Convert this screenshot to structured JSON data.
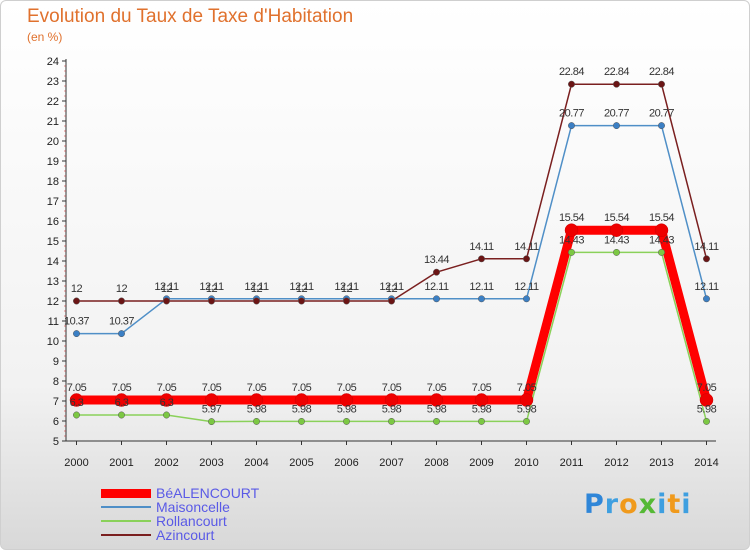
{
  "chart_data": {
    "type": "line",
    "title": "Evolution du Taux de Taxe d'Habitation",
    "subtitle": "(en %)",
    "x": [
      "2000",
      "2001",
      "2002",
      "2003",
      "2004",
      "2005",
      "2006",
      "2007",
      "2008",
      "2009",
      "2010",
      "2011",
      "2012",
      "2013",
      "2014"
    ],
    "ylim": [
      5,
      24
    ],
    "yticks": [
      5,
      6,
      7,
      8,
      9,
      10,
      11,
      12,
      13,
      14,
      15,
      16,
      17,
      18,
      19,
      20,
      21,
      22,
      23,
      24
    ],
    "grid": false,
    "legend_position": "bottom-left",
    "series": [
      {
        "name": "Maisoncelle",
        "color": "#4f8fc7",
        "point_color": "#3b7fc4",
        "values": [
          10.37,
          10.37,
          12.11,
          12.11,
          12.11,
          12.11,
          12.11,
          12.11,
          12.11,
          12.11,
          12.11,
          20.77,
          20.77,
          20.77,
          12.11
        ],
        "labels": [
          "10.37",
          "10.37",
          "12.11",
          "12.11",
          "12.11",
          "12.11",
          "12.11",
          "12.11",
          "12.11",
          "12.11",
          "12.11",
          "20.77",
          "20.77",
          "20.77",
          "12.11"
        ]
      },
      {
        "name": "Rollancourt",
        "color": "#8ad15a",
        "point_color": "#7cc843",
        "values": [
          6.3,
          6.3,
          6.3,
          5.97,
          5.98,
          5.98,
          5.98,
          5.98,
          5.98,
          5.98,
          5.98,
          14.43,
          14.43,
          14.43,
          5.98
        ],
        "labels": [
          "6.3",
          "6.3",
          "6.3",
          "5.97",
          "5.98",
          "5.98",
          "5.98",
          "5.98",
          "5.98",
          "5.98",
          "5.98",
          "14.43",
          "14.43",
          "14.43",
          "5.98"
        ]
      },
      {
        "name": "Azincourt",
        "color": "#7a1f1f",
        "point_color": "#6b1515",
        "values": [
          12,
          12,
          12,
          12,
          12,
          12,
          12,
          12,
          13.44,
          14.11,
          14.11,
          22.84,
          22.84,
          22.84,
          14.11
        ],
        "labels": [
          "12",
          "12",
          "12",
          "12",
          "12",
          "12",
          "12",
          "12",
          "13.44",
          "14.11",
          "14.11",
          "22.84",
          "22.84",
          "22.84",
          "14.11"
        ]
      },
      {
        "name": "BéALENCOURT",
        "color": "#ff0000",
        "point_color": "#ee0000",
        "values": [
          7.05,
          7.05,
          7.05,
          7.05,
          7.05,
          7.05,
          7.05,
          7.05,
          7.05,
          7.05,
          7.05,
          15.54,
          15.54,
          15.54,
          7.05
        ],
        "labels": [
          "7.05",
          "7.05",
          "7.05",
          "7.05",
          "7.05",
          "7.05",
          "7.05",
          "7.05",
          "7.05",
          "7.05",
          "7.05",
          "15.54",
          "15.54",
          "15.54",
          "7.05"
        ]
      }
    ]
  },
  "legend": {
    "items": [
      {
        "name": "BéALENCOURT",
        "color": "#ff0000",
        "text_color": "#5a5ae6"
      },
      {
        "name": "Maisoncelle",
        "color": "#4f8fc7",
        "text_color": "#5a5ae6"
      },
      {
        "name": "Rollancourt",
        "color": "#8ad15a",
        "text_color": "#5a5ae6"
      },
      {
        "name": "Azincourt",
        "color": "#7a1f1f",
        "text_color": "#5a5ae6"
      }
    ]
  },
  "brand": {
    "letters": [
      {
        "char": "P",
        "color": "#2f86d8"
      },
      {
        "char": "r",
        "color": "#3e9fe0"
      },
      {
        "char": "o",
        "color": "#f09a1c"
      },
      {
        "char": "x",
        "color": "#55b935"
      },
      {
        "char": "i",
        "color": "#3e9fe0"
      },
      {
        "char": "t",
        "color": "#f09a1c"
      },
      {
        "char": "i",
        "color": "#3e9fe0"
      }
    ]
  }
}
